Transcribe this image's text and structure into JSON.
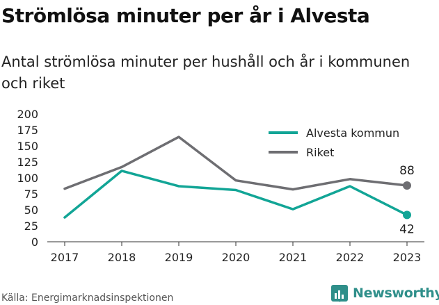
{
  "title": "Strömlösa minuter per år i Alvesta",
  "subtitle": "Antal strömlösa minuter per hushåll och år i kommunen och riket",
  "source": "Källa: Energimarknadsinspektionen",
  "brand": "Newsworthy",
  "colors": {
    "alvesta": "#12a596",
    "riket": "#6e6e72",
    "brand": "#2f8f8a"
  },
  "chart_data": {
    "type": "line",
    "x": [
      "2017",
      "2018",
      "2019",
      "2020",
      "2021",
      "2022",
      "2023"
    ],
    "series": [
      {
        "name": "Alvesta kommun",
        "values": [
          38,
          111,
          87,
          81,
          51,
          87,
          42
        ]
      },
      {
        "name": "Riket",
        "values": [
          83,
          117,
          164,
          96,
          82,
          98,
          88
        ]
      }
    ],
    "ylim": [
      0,
      200
    ],
    "yticks": [
      "0",
      "25",
      "50",
      "75",
      "100",
      "125",
      "150",
      "175",
      "200"
    ],
    "end_labels": [
      "42",
      "88"
    ],
    "legend": "top-right",
    "grid": false
  }
}
